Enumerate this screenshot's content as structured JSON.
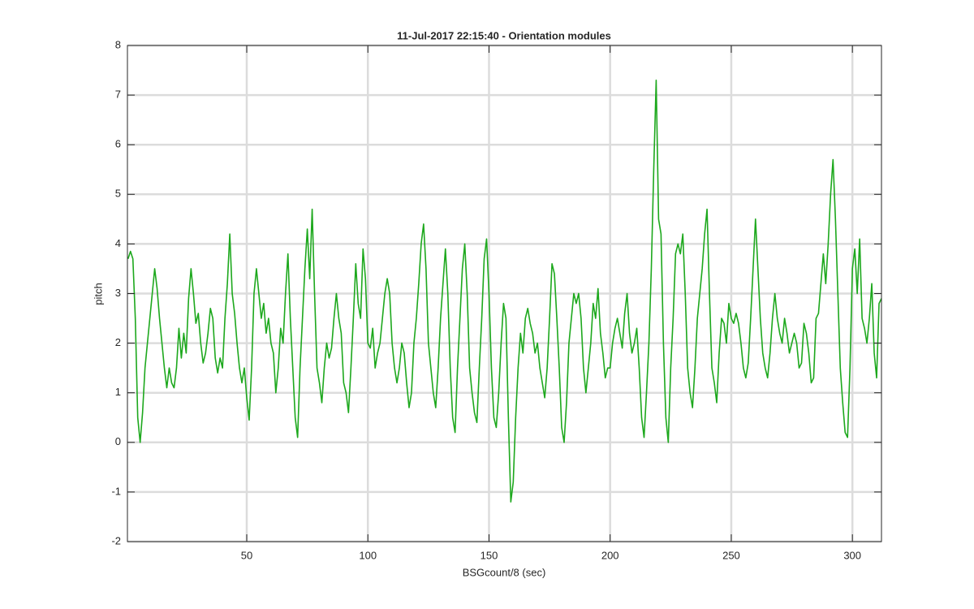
{
  "chart_data": {
    "type": "line",
    "title": "11-Jul-2017 22:15:40 - Orientation modules",
    "x_label": "BSGcount/8 (sec)",
    "y_label": "pitch",
    "xlim": [
      0.75,
      312
    ],
    "ylim": [
      -2,
      8
    ],
    "xticks": [
      50,
      100,
      150,
      200,
      250,
      300
    ],
    "yticks": [
      -2,
      -1,
      0,
      1,
      2,
      3,
      4,
      5,
      6,
      7,
      8
    ],
    "grid": true,
    "x": [
      1,
      2,
      3,
      4,
      5,
      6,
      7,
      8,
      9,
      10,
      11,
      12,
      13,
      14,
      15,
      16,
      17,
      18,
      19,
      20,
      21,
      22,
      23,
      24,
      25,
      26,
      27,
      28,
      29,
      30,
      31,
      32,
      33,
      34,
      35,
      36,
      37,
      38,
      39,
      40,
      41,
      42,
      43,
      44,
      45,
      46,
      47,
      48,
      49,
      50,
      51,
      52,
      53,
      54,
      55,
      56,
      57,
      58,
      59,
      60,
      61,
      62,
      63,
      64,
      65,
      66,
      67,
      68,
      69,
      70,
      71,
      72,
      73,
      74,
      75,
      76,
      77,
      78,
      79,
      80,
      81,
      82,
      83,
      84,
      85,
      86,
      87,
      88,
      89,
      90,
      91,
      92,
      93,
      94,
      95,
      96,
      97,
      98,
      99,
      100,
      101,
      102,
      103,
      104,
      105,
      106,
      107,
      108,
      109,
      110,
      111,
      112,
      113,
      114,
      115,
      116,
      117,
      118,
      119,
      120,
      121,
      122,
      123,
      124,
      125,
      126,
      127,
      128,
      129,
      130,
      131,
      132,
      133,
      134,
      135,
      136,
      137,
      138,
      139,
      140,
      141,
      142,
      143,
      144,
      145,
      146,
      147,
      148,
      149,
      150,
      151,
      152,
      153,
      154,
      155,
      156,
      157,
      158,
      159,
      160,
      161,
      162,
      163,
      164,
      165,
      166,
      167,
      168,
      169,
      170,
      171,
      172,
      173,
      174,
      175,
      176,
      177,
      178,
      179,
      180,
      181,
      182,
      183,
      184,
      185,
      186,
      187,
      188,
      189,
      190,
      191,
      192,
      193,
      194,
      195,
      196,
      197,
      198,
      199,
      200,
      201,
      202,
      203,
      204,
      205,
      206,
      207,
      208,
      209,
      210,
      211,
      212,
      213,
      214,
      215,
      216,
      217,
      218,
      219,
      220,
      221,
      222,
      223,
      224,
      225,
      226,
      227,
      228,
      229,
      230,
      231,
      232,
      233,
      234,
      235,
      236,
      237,
      238,
      239,
      240,
      241,
      242,
      243,
      244,
      245,
      246,
      247,
      248,
      249,
      250,
      251,
      252,
      253,
      254,
      255,
      256,
      257,
      258,
      259,
      260,
      261,
      262,
      263,
      264,
      265,
      266,
      267,
      268,
      269,
      270,
      271,
      272,
      273,
      274,
      275,
      276,
      277,
      278,
      279,
      280,
      281,
      282,
      283,
      284,
      285,
      286,
      287,
      288,
      289,
      290,
      291,
      292,
      293,
      294,
      295,
      296,
      297,
      298,
      299,
      300,
      301,
      302,
      303,
      304,
      305,
      306,
      307,
      308,
      309,
      310,
      311,
      312
    ],
    "series": [
      {
        "name": "pitch",
        "color": "#1da81d",
        "values": [
          3.7,
          3.85,
          3.7,
          2.5,
          0.5,
          0.0,
          0.6,
          1.5,
          2.0,
          2.5,
          3.0,
          3.5,
          3.1,
          2.5,
          2.0,
          1.5,
          1.1,
          1.5,
          1.2,
          1.1,
          1.5,
          2.3,
          1.7,
          2.2,
          1.8,
          2.9,
          3.5,
          3.0,
          2.4,
          2.6,
          2.0,
          1.6,
          1.8,
          2.2,
          2.7,
          2.5,
          1.7,
          1.4,
          1.7,
          1.5,
          2.5,
          3.2,
          4.2,
          3.0,
          2.6,
          2.0,
          1.5,
          1.2,
          1.5,
          0.9,
          0.45,
          1.5,
          3.0,
          3.5,
          3.0,
          2.5,
          2.8,
          2.2,
          2.5,
          2.0,
          1.8,
          1.0,
          1.5,
          2.3,
          2.0,
          3.0,
          3.8,
          2.5,
          1.5,
          0.5,
          0.1,
          1.5,
          2.5,
          3.5,
          4.3,
          3.3,
          4.7,
          3.0,
          1.5,
          1.2,
          0.8,
          1.5,
          2.0,
          1.7,
          1.9,
          2.5,
          3.0,
          2.5,
          2.2,
          1.2,
          1.0,
          0.6,
          1.5,
          2.5,
          3.6,
          2.8,
          2.5,
          3.9,
          3.3,
          2.0,
          1.9,
          2.3,
          1.5,
          1.8,
          2.0,
          2.5,
          3.0,
          3.3,
          3.0,
          2.0,
          1.5,
          1.2,
          1.5,
          2.0,
          1.8,
          1.2,
          0.7,
          1.0,
          2.0,
          2.5,
          3.2,
          4.0,
          4.4,
          3.5,
          2.0,
          1.5,
          1.0,
          0.7,
          1.5,
          2.5,
          3.2,
          3.9,
          3.0,
          1.5,
          0.5,
          0.2,
          1.5,
          2.5,
          3.5,
          4.0,
          3.0,
          1.5,
          1.0,
          0.6,
          0.4,
          1.5,
          2.5,
          3.7,
          4.1,
          3.0,
          1.5,
          0.5,
          0.3,
          1.0,
          2.0,
          2.8,
          2.5,
          0.5,
          -1.2,
          -0.8,
          0.5,
          1.5,
          2.2,
          1.8,
          2.5,
          2.7,
          2.4,
          2.2,
          1.8,
          2.0,
          1.5,
          1.2,
          0.9,
          1.5,
          2.5,
          3.6,
          3.4,
          2.5,
          1.5,
          0.3,
          0.0,
          0.8,
          2.0,
          2.5,
          3.0,
          2.8,
          3.0,
          2.5,
          1.5,
          1.0,
          1.5,
          2.0,
          2.8,
          2.5,
          3.1,
          2.2,
          1.8,
          1.3,
          1.5,
          1.5,
          2.0,
          2.3,
          2.5,
          2.2,
          1.9,
          2.6,
          3.0,
          2.2,
          1.8,
          2.0,
          2.3,
          1.5,
          0.5,
          0.1,
          1.0,
          2.0,
          3.5,
          5.5,
          7.3,
          4.5,
          4.2,
          2.0,
          0.5,
          0.0,
          1.5,
          2.5,
          3.8,
          4.0,
          3.8,
          4.2,
          3.0,
          1.5,
          1.0,
          0.7,
          1.5,
          2.5,
          3.0,
          3.5,
          4.2,
          4.7,
          3.0,
          1.5,
          1.2,
          0.8,
          1.8,
          2.5,
          2.4,
          2.0,
          2.8,
          2.5,
          2.4,
          2.6,
          2.4,
          2.0,
          1.5,
          1.3,
          1.6,
          2.5,
          3.5,
          4.5,
          3.5,
          2.5,
          1.8,
          1.5,
          1.3,
          1.8,
          2.5,
          3.0,
          2.5,
          2.2,
          2.0,
          2.5,
          2.2,
          1.8,
          2.0,
          2.2,
          2.0,
          1.5,
          1.6,
          2.4,
          2.2,
          1.8,
          1.2,
          1.3,
          2.5,
          2.6,
          3.2,
          3.8,
          3.2,
          4.0,
          5.0,
          5.7,
          4.5,
          3.0,
          1.5,
          0.8,
          0.2,
          0.1,
          1.5,
          3.5,
          3.9,
          3.0,
          4.1,
          2.5,
          2.3,
          2.0,
          2.5,
          3.2,
          1.8,
          1.3,
          2.8,
          2.9
        ]
      }
    ]
  }
}
